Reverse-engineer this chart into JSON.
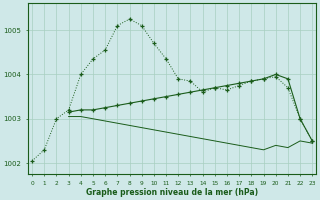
{
  "xlabel": "Graphe pression niveau de la mer (hPa)",
  "background_color": "#cfe8e8",
  "grid_color": "#a8cfc0",
  "line_color": "#1a5c1a",
  "x_values": [
    0,
    1,
    2,
    3,
    4,
    5,
    6,
    7,
    8,
    9,
    10,
    11,
    12,
    13,
    14,
    15,
    16,
    17,
    18,
    19,
    20,
    21,
    22,
    23
  ],
  "series1_dotted": [
    1002.05,
    1002.3,
    1003.0,
    1003.2,
    1004.0,
    1004.35,
    1004.55,
    1005.1,
    1005.25,
    1005.1,
    1004.7,
    1004.35,
    1003.9,
    1003.85,
    1003.6,
    1003.7,
    1003.65,
    1003.75,
    1003.85,
    1003.9,
    1003.95,
    1003.7,
    1003.0,
    1002.5
  ],
  "series2_solid_up": [
    null,
    null,
    null,
    1003.15,
    1003.2,
    1003.2,
    1003.25,
    1003.3,
    1003.35,
    1003.4,
    1003.45,
    1003.5,
    1003.55,
    1003.6,
    1003.65,
    1003.7,
    1003.75,
    1003.8,
    1003.85,
    1003.9,
    1004.0,
    1003.9,
    1003.0,
    1002.5
  ],
  "series3_solid_down": [
    null,
    null,
    null,
    1003.05,
    1003.05,
    1003.0,
    1002.95,
    1002.9,
    1002.85,
    1002.8,
    1002.75,
    1002.7,
    1002.65,
    1002.6,
    1002.55,
    1002.5,
    1002.45,
    1002.4,
    1002.35,
    1002.3,
    1002.4,
    1002.35,
    1002.5,
    1002.45
  ],
  "ylim": [
    1001.75,
    1005.6
  ],
  "yticks": [
    1002,
    1003,
    1004,
    1005
  ],
  "xticks": [
    0,
    1,
    2,
    3,
    4,
    5,
    6,
    7,
    8,
    9,
    10,
    11,
    12,
    13,
    14,
    15,
    16,
    17,
    18,
    19,
    20,
    21,
    22,
    23
  ]
}
